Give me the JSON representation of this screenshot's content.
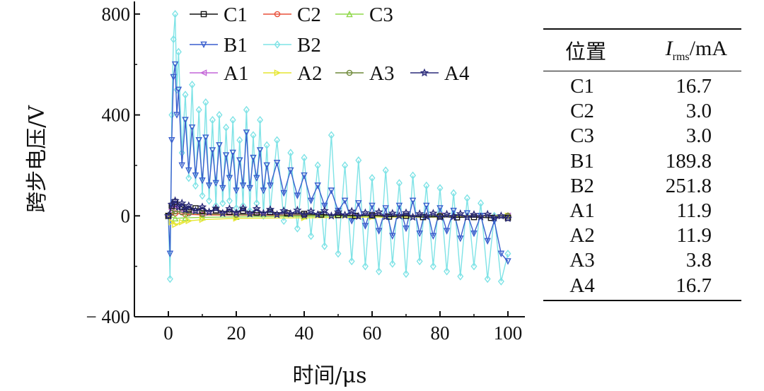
{
  "chart_data": {
    "type": "line",
    "ylabel": "跨步电压/V",
    "xlabel": "时间/μs",
    "xlim": [
      -10,
      105
    ],
    "ylim": [
      -400,
      850
    ],
    "xticks": [
      0,
      20,
      40,
      60,
      80,
      100
    ],
    "yticks": [
      -400,
      0,
      400,
      800
    ],
    "ytick_labels": [
      "− 400",
      "0",
      "400",
      "800"
    ],
    "legend_position": "top",
    "series": [
      {
        "name": "C1",
        "color": "#111111",
        "marker": "square",
        "x": [
          0,
          1,
          2,
          4,
          6,
          8,
          10,
          14,
          18,
          22,
          26,
          30,
          35,
          40,
          45,
          50,
          55,
          60,
          65,
          70,
          75,
          80,
          85,
          90,
          95,
          100
        ],
        "y": [
          0,
          40,
          55,
          35,
          25,
          30,
          20,
          22,
          15,
          20,
          12,
          15,
          10,
          8,
          5,
          3,
          0,
          2,
          -3,
          0,
          -5,
          -3,
          -6,
          -5,
          -8,
          -8
        ]
      },
      {
        "name": "C2",
        "color": "#e8503a",
        "marker": "circle",
        "x": [
          0,
          2,
          5,
          10,
          20,
          40,
          60,
          80,
          100
        ],
        "y": [
          0,
          10,
          6,
          4,
          3,
          2,
          2,
          1,
          1
        ]
      },
      {
        "name": "C3",
        "color": "#8fd84a",
        "marker": "triangle-up",
        "x": [
          0,
          2,
          5,
          10,
          20,
          40,
          60,
          80,
          100
        ],
        "y": [
          0,
          -10,
          -8,
          -6,
          -4,
          -2,
          -1,
          0,
          1
        ]
      },
      {
        "name": "B1",
        "color": "#3a5fcd",
        "marker": "triangle-down",
        "x": [
          0,
          0.5,
          1,
          1.5,
          2,
          2.5,
          3,
          4,
          5,
          6,
          7,
          8,
          9,
          10,
          11,
          12,
          13,
          14,
          15,
          16,
          17,
          18,
          19,
          20,
          21,
          22,
          23,
          24,
          25,
          26,
          27,
          28,
          29,
          30,
          32,
          34,
          36,
          38,
          40,
          42,
          44,
          46,
          48,
          50,
          52,
          54,
          56,
          58,
          60,
          62,
          64,
          66,
          68,
          70,
          72,
          74,
          76,
          78,
          80,
          82,
          84,
          86,
          88,
          90,
          92,
          94,
          96,
          98,
          100
        ],
        "y": [
          0,
          -150,
          300,
          550,
          600,
          400,
          500,
          200,
          380,
          180,
          350,
          160,
          300,
          140,
          310,
          120,
          260,
          130,
          280,
          110,
          240,
          150,
          250,
          100,
          220,
          120,
          330,
          110,
          230,
          150,
          260,
          100,
          200,
          120,
          210,
          90,
          180,
          80,
          160,
          60,
          120,
          40,
          100,
          20,
          60,
          -20,
          50,
          -40,
          40,
          -60,
          30,
          -80,
          40,
          -50,
          60,
          -70,
          40,
          -80,
          30,
          -60,
          20,
          -90,
          10,
          -70,
          0,
          -100,
          -20,
          -150,
          -180
        ]
      },
      {
        "name": "B2",
        "color": "#7fe3e6",
        "marker": "diamond",
        "x": [
          0,
          0.5,
          1,
          1.5,
          2,
          2.5,
          3,
          4,
          5,
          6,
          7,
          8,
          9,
          10,
          11,
          12,
          13,
          14,
          15,
          16,
          17,
          18,
          19,
          20,
          21,
          22,
          23,
          24,
          25,
          26,
          27,
          28,
          29,
          30,
          32,
          34,
          36,
          38,
          40,
          42,
          44,
          46,
          48,
          50,
          52,
          54,
          56,
          58,
          60,
          62,
          64,
          66,
          68,
          70,
          72,
          74,
          76,
          78,
          80,
          82,
          84,
          86,
          88,
          90,
          92,
          94,
          96,
          98,
          100
        ],
        "y": [
          0,
          -250,
          400,
          700,
          800,
          500,
          650,
          250,
          480,
          150,
          520,
          120,
          420,
          80,
          450,
          60,
          380,
          40,
          400,
          50,
          350,
          60,
          380,
          30,
          300,
          40,
          420,
          20,
          320,
          50,
          380,
          0,
          280,
          20,
          300,
          -20,
          250,
          -50,
          230,
          -80,
          200,
          -120,
          320,
          -150,
          200,
          -180,
          220,
          -200,
          150,
          -220,
          180,
          -190,
          130,
          -230,
          160,
          -180,
          120,
          -200,
          110,
          -220,
          90,
          -240,
          70,
          -200,
          50,
          -250,
          0,
          -260,
          -150
        ]
      },
      {
        "name": "A1",
        "color": "#c466d8",
        "marker": "triangle-left",
        "x": [
          0,
          1,
          2,
          4,
          6,
          10,
          20,
          40,
          60,
          80,
          100
        ],
        "y": [
          0,
          25,
          35,
          20,
          15,
          10,
          8,
          5,
          3,
          2,
          0
        ]
      },
      {
        "name": "A2",
        "color": "#e6e632",
        "marker": "triangle-right",
        "x": [
          0,
          1,
          2,
          4,
          6,
          10,
          20,
          40,
          60,
          80,
          100
        ],
        "y": [
          0,
          -25,
          -35,
          -25,
          -20,
          -15,
          -10,
          -8,
          -5,
          -5,
          0
        ]
      },
      {
        "name": "A3",
        "color": "#6f8a3a",
        "marker": "circle",
        "x": [
          0,
          1,
          2,
          4,
          6,
          10,
          20,
          40,
          60,
          80,
          100
        ],
        "y": [
          0,
          12,
          18,
          14,
          10,
          8,
          5,
          3,
          2,
          1,
          0
        ]
      },
      {
        "name": "A4",
        "color": "#2a2a7a",
        "marker": "star",
        "x": [
          0,
          1,
          2,
          3,
          4,
          5,
          6,
          8,
          10,
          12,
          14,
          16,
          18,
          20,
          22,
          24,
          26,
          28,
          30,
          32,
          34,
          36,
          38,
          40,
          42,
          44,
          46,
          48,
          50,
          52,
          54,
          56,
          58,
          60,
          62,
          64,
          66,
          68,
          70,
          72,
          74,
          76,
          78,
          80,
          82,
          84,
          86,
          88,
          90,
          92,
          94,
          96,
          98,
          100
        ],
        "y": [
          0,
          45,
          60,
          35,
          50,
          25,
          40,
          20,
          35,
          15,
          30,
          10,
          28,
          12,
          30,
          8,
          28,
          10,
          25,
          5,
          20,
          8,
          22,
          3,
          18,
          5,
          20,
          0,
          15,
          3,
          18,
          -2,
          12,
          2,
          15,
          -3,
          10,
          0,
          12,
          -5,
          8,
          -2,
          10,
          -5,
          6,
          -3,
          8,
          -6,
          5,
          -4,
          6,
          -8,
          0,
          -10
        ]
      }
    ]
  },
  "table": {
    "header_position": "位置",
    "header_symbol_main": "I",
    "header_symbol_sub": "rms",
    "header_unit": "/mA",
    "rows": [
      {
        "position": "C1",
        "value": "16.7"
      },
      {
        "position": "C2",
        "value": "3.0"
      },
      {
        "position": "C3",
        "value": "3.0"
      },
      {
        "position": "B1",
        "value": "189.8"
      },
      {
        "position": "B2",
        "value": "251.8"
      },
      {
        "position": "A1",
        "value": "11.9"
      },
      {
        "position": "A2",
        "value": "11.9"
      },
      {
        "position": "A3",
        "value": "3.8"
      },
      {
        "position": "A4",
        "value": "16.7"
      }
    ]
  }
}
